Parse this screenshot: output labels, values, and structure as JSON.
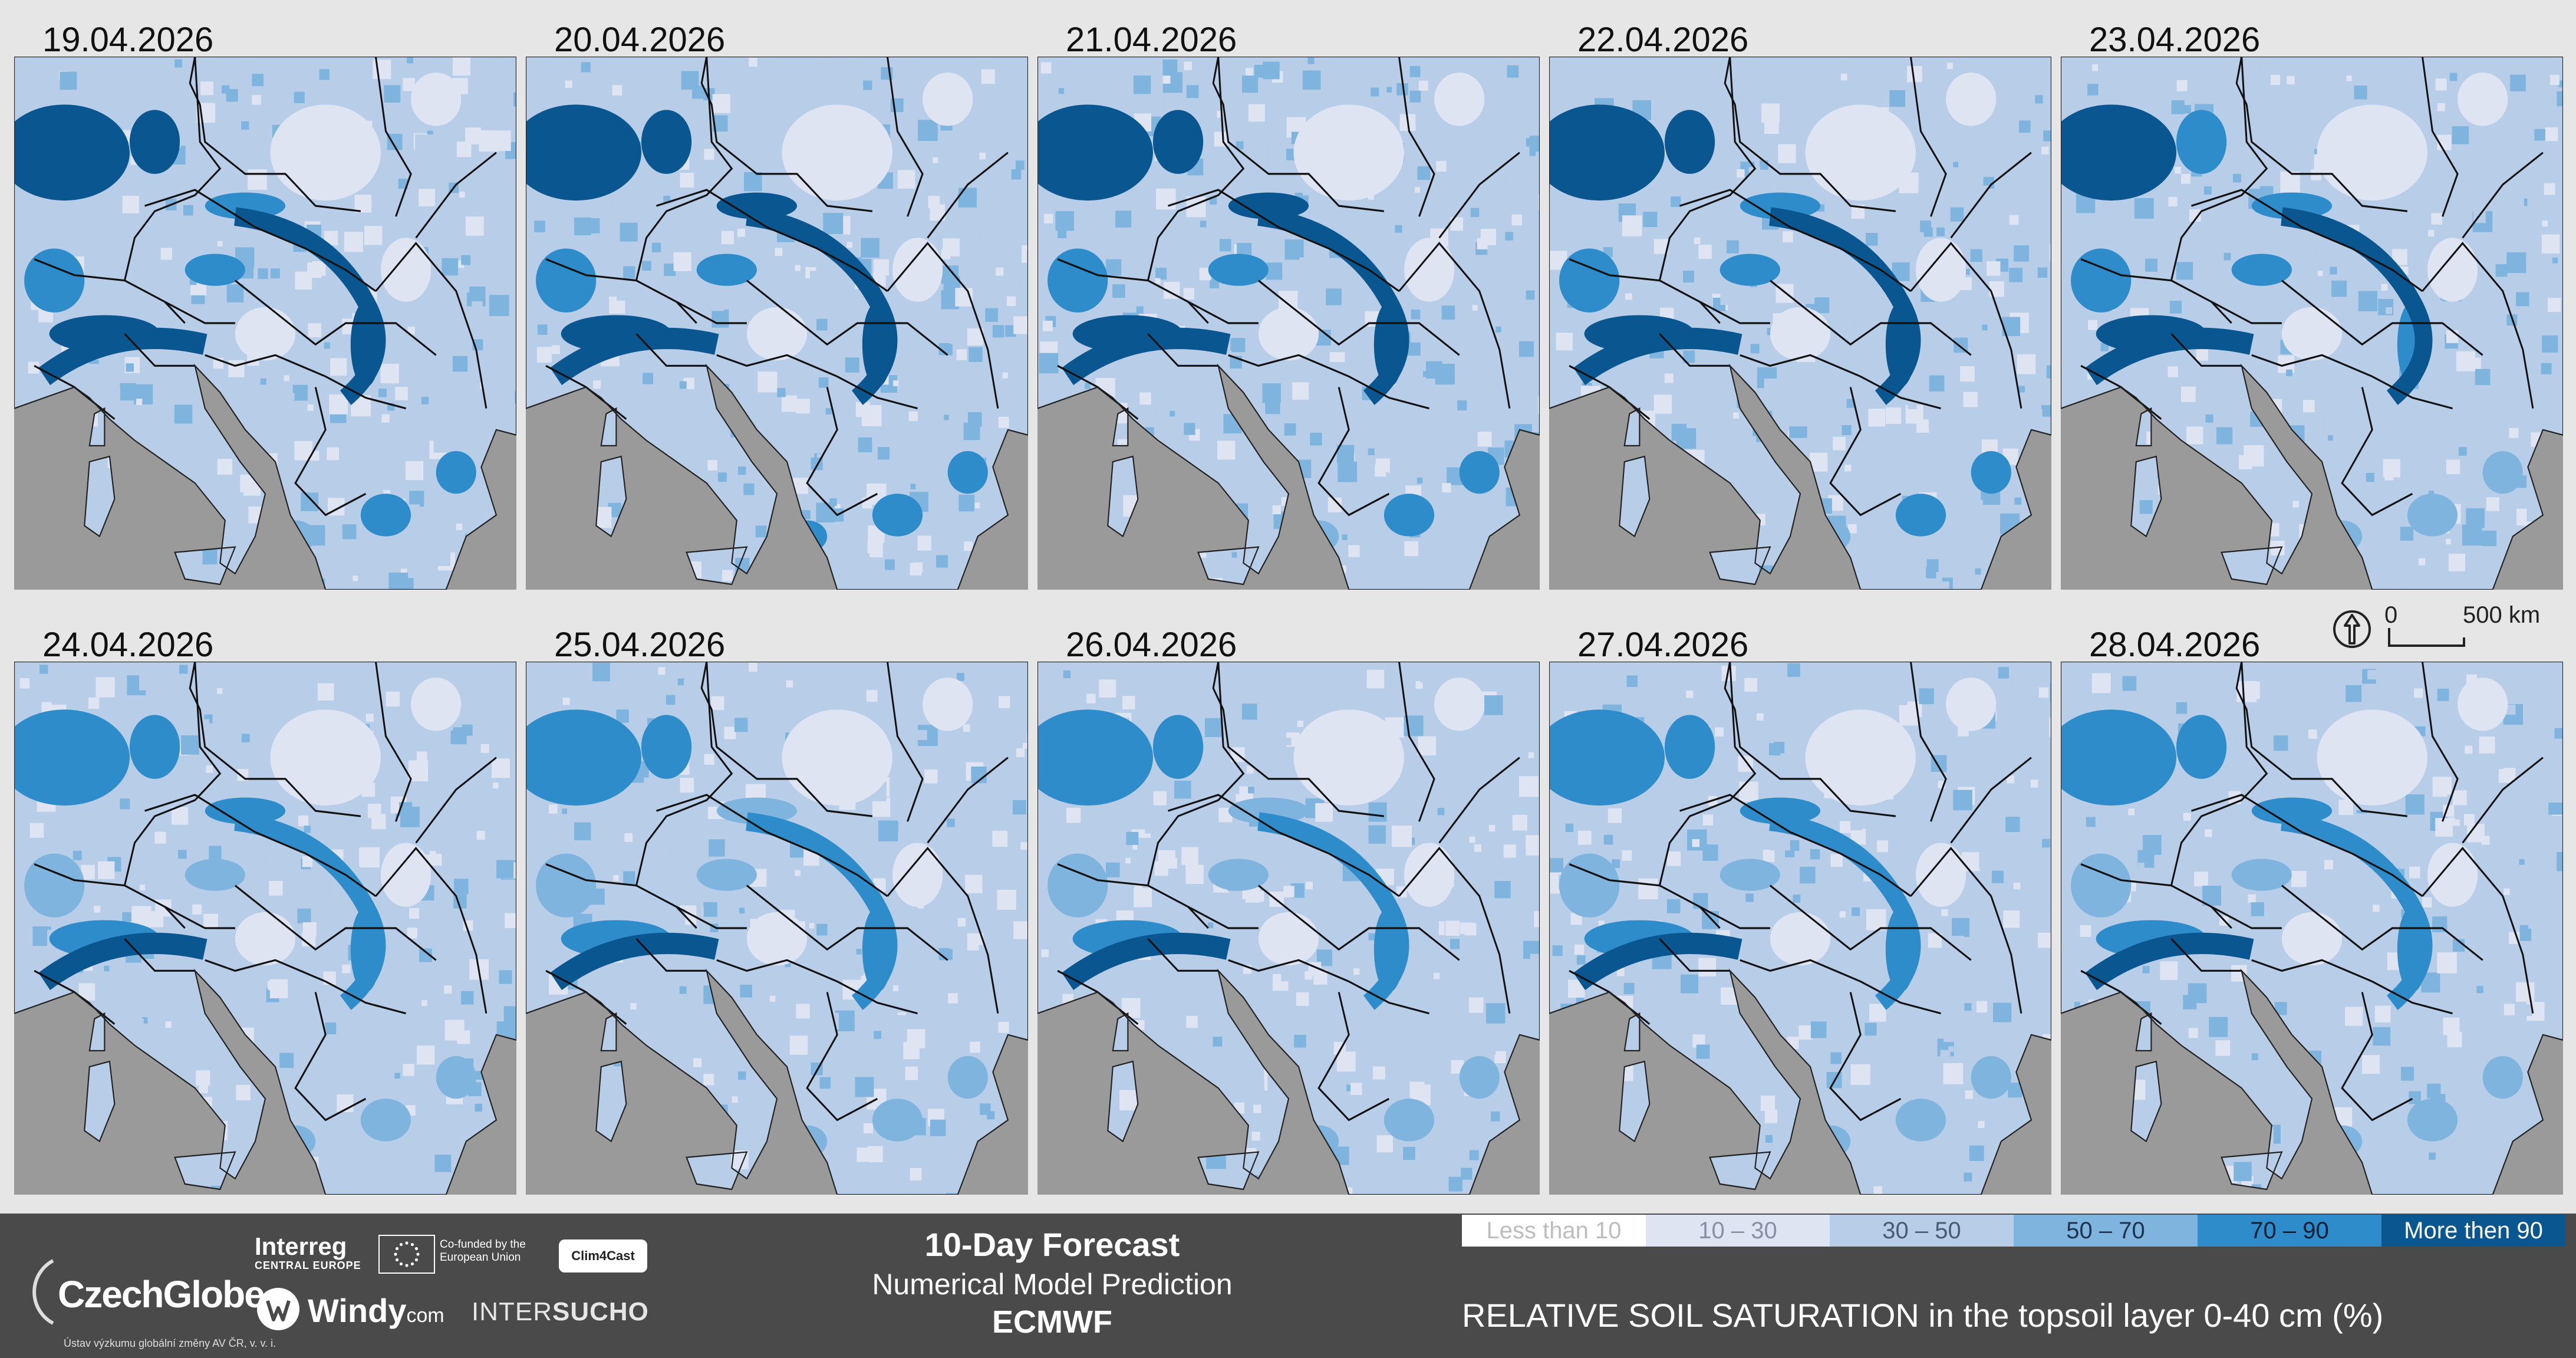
{
  "panels": [
    {
      "date": "19.04.2026",
      "wet": 0.7
    },
    {
      "date": "20.04.2026",
      "wet": 0.85
    },
    {
      "date": "21.04.2026",
      "wet": 0.8
    },
    {
      "date": "22.04.2026",
      "wet": 0.72
    },
    {
      "date": "23.04.2026",
      "wet": 0.65
    },
    {
      "date": "24.04.2026",
      "wet": 0.55
    },
    {
      "date": "25.04.2026",
      "wet": 0.5
    },
    {
      "date": "26.04.2026",
      "wet": 0.48
    },
    {
      "date": "27.04.2026",
      "wet": 0.52
    },
    {
      "date": "28.04.2026",
      "wet": 0.55
    }
  ],
  "scale": {
    "zero": "0",
    "distance": "500 km"
  },
  "footer": {
    "czechglobe": {
      "name": "CzechGlobe",
      "subtitle": "Ústav výzkumu globální změny AV ČR, v. v. i."
    },
    "interreg": {
      "name": "Interreg",
      "subtitle": "CENTRAL EUROPE"
    },
    "eu": {
      "text": "Co-funded by the European Union"
    },
    "clim4cast": "Clim4Cast",
    "windy": {
      "name": "Windy",
      "suffix": "com"
    },
    "intersucho": {
      "prefix": "INTER",
      "bold": "SUCHO"
    },
    "forecast": {
      "title": "10-Day Forecast",
      "subtitle": "Numerical Model Prediction",
      "model": "ECMWF"
    }
  },
  "legend": {
    "items": [
      {
        "label": "Less than 10",
        "color": "#ffffff",
        "text": "#bdbdbd"
      },
      {
        "label": "10 – 30",
        "color": "#dfe4f3",
        "text": "#8a8fa6"
      },
      {
        "label": "30 – 50",
        "color": "#b7cde8",
        "text": "#4a5a78"
      },
      {
        "label": "50 – 70",
        "color": "#7fb4de",
        "text": "#1d3350"
      },
      {
        "label": "70 – 90",
        "color": "#2e8ccb",
        "text": "#0b1e33"
      },
      {
        "label": "More then 90",
        "color": "#0a5690",
        "text": "#ffffff"
      }
    ],
    "title": "RELATIVE SOIL SATURATION in the topsoil layer 0-40 cm (%)"
  },
  "colors": {
    "sea": "#9a9a9a",
    "border": "#111111"
  }
}
